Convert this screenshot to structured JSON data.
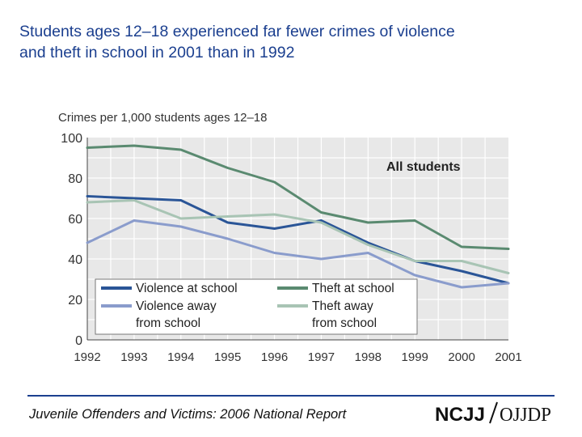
{
  "slide": {
    "title_line1": "Students ages 12–18 experienced far fewer crimes of violence",
    "title_line2": "and theft in school in 2001 than in 1992",
    "footer": "Juvenile Offenders and Victims: 2006 National Report",
    "logo_left": "NCJJ",
    "logo_right": "OJJDP"
  },
  "chart_data": {
    "type": "line",
    "title": "Crimes per 1,000 students ages 12–18",
    "annotation": "All students",
    "xlabel": "",
    "ylabel": "Crimes per 1,000 students ages 12–18",
    "categories": [
      "1992",
      "1993",
      "1994",
      "1995",
      "1996",
      "1997",
      "1998",
      "1999",
      "2000",
      "2001"
    ],
    "ylim": [
      0,
      100
    ],
    "yticks": [
      0,
      20,
      40,
      60,
      80,
      100
    ],
    "grid": true,
    "legend_position": "bottom-left",
    "series": [
      {
        "name": "Violence at school",
        "legend_lines": [
          "Violence at school"
        ],
        "color": "#2a5597",
        "values": [
          71,
          70,
          69,
          58,
          55,
          59,
          48,
          39,
          34,
          28
        ]
      },
      {
        "name": "Theft at school",
        "legend_lines": [
          "Theft at school"
        ],
        "color": "#5a8a70",
        "values": [
          95,
          96,
          94,
          85,
          78,
          63,
          58,
          59,
          46,
          45
        ]
      },
      {
        "name": "Violence away from school",
        "legend_lines": [
          "Violence away",
          "from school"
        ],
        "color": "#8a9ccc",
        "values": [
          48,
          59,
          56,
          50,
          43,
          40,
          43,
          32,
          26,
          28
        ]
      },
      {
        "name": "Theft away from school",
        "legend_lines": [
          "Theft away",
          "from school"
        ],
        "color": "#a8c4b4",
        "values": [
          68,
          69,
          60,
          61,
          62,
          58,
          47,
          39,
          39,
          33
        ]
      }
    ]
  }
}
